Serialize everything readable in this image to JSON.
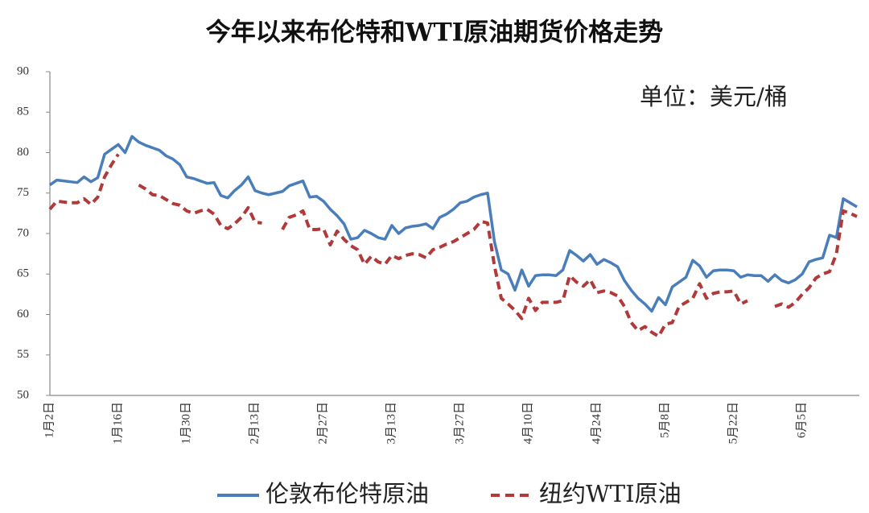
{
  "chart_data": {
    "type": "line",
    "title": "今年以来布伦特和WTI原油期货价格走势",
    "annotation": "单位：美元/桶",
    "categories": [
      "1月2日",
      null,
      null,
      null,
      null,
      null,
      null,
      null,
      null,
      null,
      "1月16日",
      null,
      null,
      null,
      null,
      null,
      null,
      null,
      null,
      null,
      "1月30日",
      null,
      null,
      null,
      null,
      null,
      null,
      null,
      null,
      null,
      "2月13日",
      null,
      null,
      null,
      null,
      null,
      null,
      null,
      null,
      null,
      "2月27日",
      null,
      null,
      null,
      null,
      null,
      null,
      null,
      null,
      null,
      "3月13日",
      null,
      null,
      null,
      null,
      null,
      null,
      null,
      null,
      null,
      "3月27日",
      null,
      null,
      null,
      null,
      null,
      null,
      null,
      null,
      null,
      "4月10日",
      null,
      null,
      null,
      null,
      null,
      null,
      null,
      null,
      null,
      "4月24日",
      null,
      null,
      null,
      null,
      null,
      null,
      null,
      null,
      null,
      "5月8日",
      null,
      null,
      null,
      null,
      null,
      null,
      null,
      null,
      null,
      "5月22日",
      null,
      null,
      null,
      null,
      null,
      null,
      null,
      null,
      null,
      "6月5日",
      null,
      null,
      null,
      null,
      null,
      null,
      null,
      null
    ],
    "series": [
      {
        "name": "伦敦布伦特原油",
        "color": "#4a7ebb",
        "dashed": false,
        "values": [
          76.0,
          76.6,
          76.5,
          76.4,
          76.3,
          77.0,
          76.4,
          76.9,
          79.8,
          80.4,
          81.0,
          80.0,
          82.0,
          81.3,
          80.9,
          80.6,
          80.3,
          79.6,
          79.2,
          78.5,
          77.0,
          76.8,
          76.5,
          76.2,
          76.3,
          74.7,
          74.4,
          75.3,
          76.0,
          77.0,
          75.3,
          75.0,
          74.8,
          75.0,
          75.2,
          75.9,
          76.2,
          76.5,
          74.5,
          74.6,
          74.0,
          73.0,
          72.2,
          71.2,
          69.3,
          69.5,
          70.4,
          70.0,
          69.5,
          69.3,
          71.0,
          70.0,
          70.7,
          70.9,
          71.0,
          71.2,
          70.6,
          72.0,
          72.4,
          73.0,
          73.8,
          74.0,
          74.5,
          74.8,
          75.0,
          69.0,
          65.5,
          65.0,
          63.0,
          65.5,
          63.5,
          64.8,
          64.9,
          64.9,
          64.8,
          65.5,
          67.9,
          67.3,
          66.6,
          67.4,
          66.2,
          66.8,
          66.4,
          65.9,
          64.2,
          63.0,
          62.0,
          61.3,
          60.4,
          62.1,
          61.2,
          63.4,
          64.0,
          64.6,
          66.7,
          66.0,
          64.6,
          65.4,
          65.5,
          65.5,
          65.4,
          64.6,
          64.9,
          64.8,
          64.8,
          64.1,
          64.9,
          64.2,
          63.9,
          64.3,
          65.0,
          66.5,
          66.8,
          67.0,
          69.8,
          69.5,
          74.3,
          73.8,
          73.3
        ]
      },
      {
        "name": "纽约WTI原油",
        "color": "#b03a3a",
        "dashed": true,
        "values": [
          73.0,
          74.0,
          73.9,
          73.8,
          73.8,
          74.3,
          73.6,
          74.5,
          77.0,
          78.5,
          79.8,
          null,
          null,
          76.0,
          75.5,
          74.8,
          74.7,
          74.2,
          73.7,
          73.5,
          72.8,
          72.5,
          72.8,
          73.0,
          72.4,
          71.0,
          70.6,
          71.2,
          72.0,
          73.2,
          71.4,
          71.3,
          null,
          null,
          70.5,
          72.0,
          72.3,
          72.8,
          70.5,
          70.5,
          70.6,
          68.6,
          70.3,
          69.3,
          68.5,
          68.0,
          66.2,
          67.2,
          66.5,
          66.2,
          67.3,
          66.9,
          67.3,
          67.5,
          67.4,
          67.0,
          68.0,
          68.3,
          68.7,
          69.0,
          69.5,
          70.0,
          70.5,
          71.5,
          71.3,
          66.0,
          62.0,
          61.3,
          60.5,
          59.5,
          62.0,
          60.5,
          61.5,
          61.5,
          61.5,
          61.7,
          64.8,
          64.0,
          63.5,
          64.3,
          62.7,
          62.9,
          62.7,
          62.3,
          61.0,
          59.0,
          58.0,
          58.5,
          57.8,
          57.3,
          58.8,
          59.0,
          61.0,
          61.5,
          62.0,
          63.8,
          62.0,
          62.6,
          62.8,
          62.8,
          62.9,
          61.3,
          61.7,
          null,
          null,
          null,
          61.0,
          61.3,
          60.9,
          61.5,
          62.5,
          63.3,
          64.5,
          65.0,
          65.3,
          67.5,
          72.8,
          72.5,
          72.1
        ]
      }
    ],
    "ylim": [
      50,
      90
    ],
    "yticks": [
      50,
      55,
      60,
      65,
      70,
      75,
      80,
      85,
      90
    ],
    "grid": false
  }
}
